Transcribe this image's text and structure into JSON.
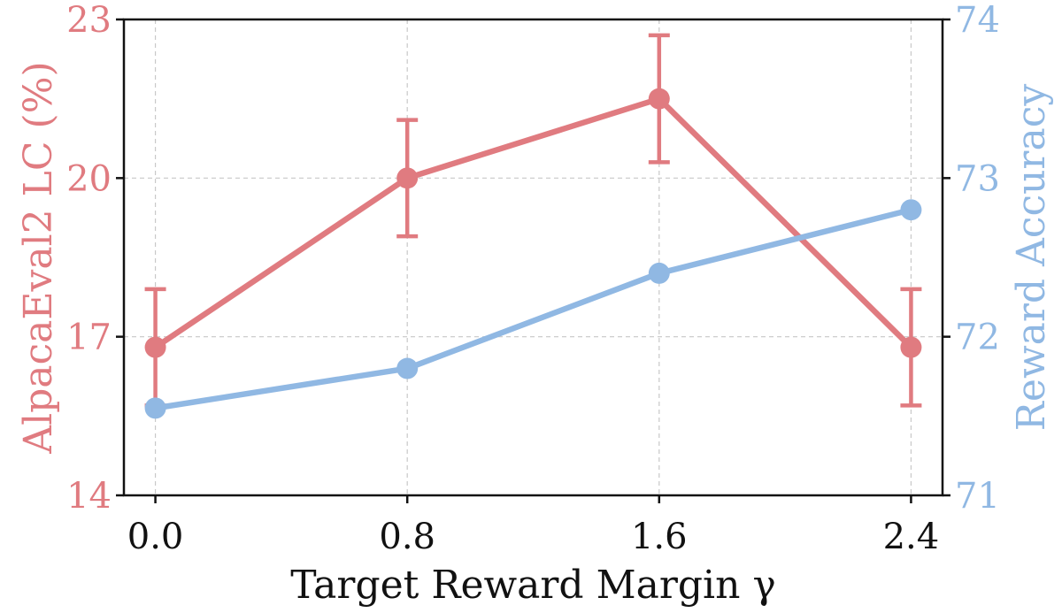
{
  "chart_data": {
    "type": "line",
    "x": [
      0.0,
      0.8,
      1.6,
      2.4
    ],
    "x_tick_labels": [
      "0.0",
      "0.8",
      "1.6",
      "2.4"
    ],
    "xlabel": "Target Reward Margin γ",
    "xlim": [
      -0.1,
      2.5
    ],
    "grid": true,
    "y_left": {
      "label": "AlpacaEval2 LC (%)",
      "ylim": [
        14,
        23
      ],
      "ticks": [
        14,
        17,
        20,
        23
      ],
      "tick_labels": [
        "14",
        "17",
        "20",
        "23"
      ],
      "color": "#e07b80"
    },
    "y_right": {
      "label": "Reward Accuracy",
      "ylim": [
        71,
        74
      ],
      "ticks": [
        71,
        72,
        73,
        74
      ],
      "tick_labels": [
        "71",
        "72",
        "73",
        "74"
      ],
      "color": "#90b8e3"
    },
    "series": [
      {
        "axis": "left",
        "values": [
          16.8,
          20.0,
          21.5,
          16.8
        ],
        "error": [
          1.1,
          1.1,
          1.2,
          1.1
        ],
        "color": "#e07b80"
      },
      {
        "axis": "right",
        "values": [
          71.55,
          71.8,
          72.4,
          72.8
        ],
        "color": "#90b8e3"
      }
    ]
  }
}
